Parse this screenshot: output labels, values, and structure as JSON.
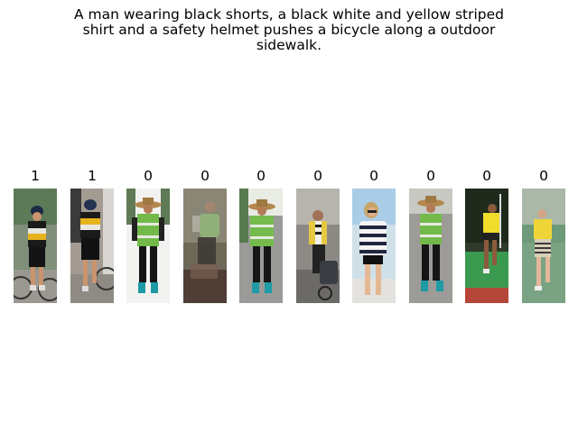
{
  "caption": {
    "line1": "A man wearing black shorts, a black white and yellow striped",
    "line2": "shirt and a safety helmet pushes a bicycle along a outdoor",
    "line3": "sidewalk."
  },
  "results": [
    {
      "label": "1",
      "name": "cyclist-striped-shirt-helmet"
    },
    {
      "label": "1",
      "name": "cyclist-striped-shirt-back-view"
    },
    {
      "label": "0",
      "name": "worker-safety-vest-straw-hat"
    },
    {
      "label": "0",
      "name": "blurred-walker-green-vest"
    },
    {
      "label": "0",
      "name": "worker-safety-vest-straw-hat-2"
    },
    {
      "label": "0",
      "name": "woman-yellow-jacket-stroller"
    },
    {
      "label": "0",
      "name": "woman-striped-sweater-sunglasses"
    },
    {
      "label": "0",
      "name": "worker-safety-vest-straw-hat-3"
    },
    {
      "label": "0",
      "name": "runner-yellow-shirt-field"
    },
    {
      "label": "0",
      "name": "woman-yellow-top-striped-skirt"
    }
  ]
}
